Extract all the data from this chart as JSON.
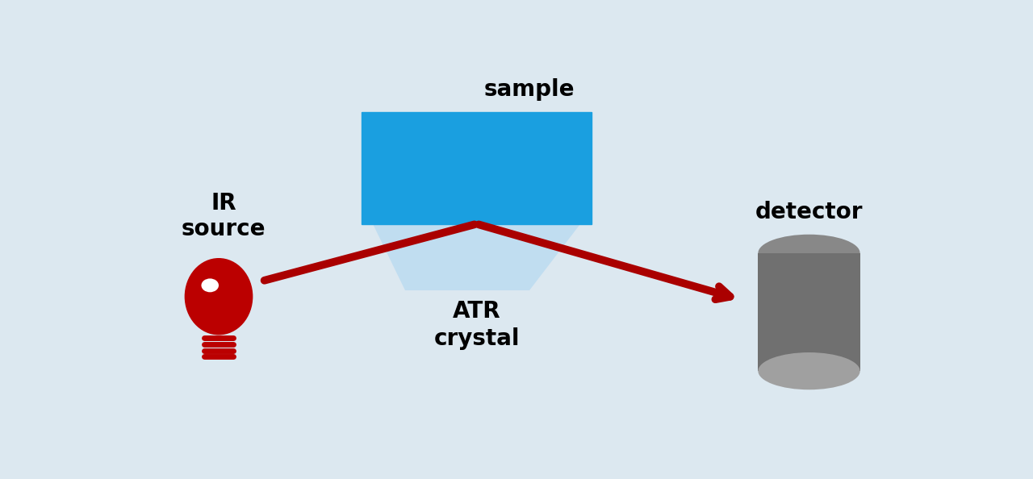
{
  "bg_color": "#dce8f0",
  "sample_color": "#1a9fe0",
  "sample_label": "sample",
  "atr_crystal_color": "#c0ddf0",
  "atr_label": "ATR\ncrystal",
  "beam_color": "#aa0000",
  "beam_lw": 7,
  "ir_label": "IR\nsource",
  "detector_label": "detector",
  "label_fontsize": 20,
  "label_fontweight": "bold",
  "bulb_color": "#bb0000",
  "cyl_side_color": "#707070",
  "cyl_front_color": "#a0a0a0",
  "cyl_top_color": "#888888"
}
